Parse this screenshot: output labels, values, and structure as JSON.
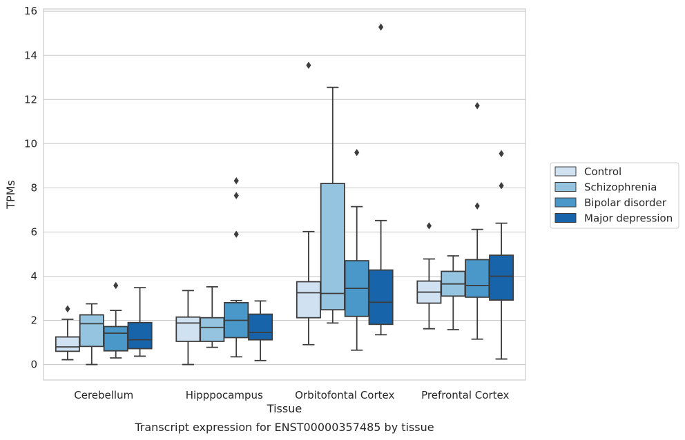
{
  "caption": "Transcript expression for ENST00000357485 by tissue",
  "chart_data": {
    "type": "box",
    "xlabel": "Tissue",
    "ylabel": "TPMs",
    "ylim": [
      -0.7,
      16.1
    ],
    "yticks": [
      0,
      2,
      4,
      6,
      8,
      10,
      12,
      14,
      16
    ],
    "grid": true,
    "legend_position": "right",
    "categories": [
      "Cerebellum",
      "Hipppocampus",
      "Orbitofontal Cortex",
      "Prefrontal Cortex"
    ],
    "series": [
      {
        "name": "Control",
        "color": "#d0e1f2",
        "boxes": [
          {
            "whisker_low": 0.22,
            "q1": 0.6,
            "median": 0.8,
            "q3": 1.25,
            "whisker_high": 2.05,
            "outliers": [
              2.52
            ]
          },
          {
            "whisker_low": 0.0,
            "q1": 1.05,
            "median": 1.88,
            "q3": 2.15,
            "whisker_high": 3.35,
            "outliers": []
          },
          {
            "whisker_low": 0.9,
            "q1": 2.12,
            "median": 3.25,
            "q3": 3.75,
            "whisker_high": 6.02,
            "outliers": [
              13.55
            ]
          },
          {
            "whisker_low": 1.62,
            "q1": 2.78,
            "median": 3.28,
            "q3": 3.78,
            "whisker_high": 4.78,
            "outliers": [
              6.28
            ]
          }
        ]
      },
      {
        "name": "Schizophrenia",
        "color": "#94c4df",
        "boxes": [
          {
            "whisker_low": 0.0,
            "q1": 0.82,
            "median": 1.85,
            "q3": 2.25,
            "whisker_high": 2.75,
            "outliers": []
          },
          {
            "whisker_low": 0.78,
            "q1": 1.05,
            "median": 1.68,
            "q3": 2.12,
            "whisker_high": 3.52,
            "outliers": []
          },
          {
            "whisker_low": 1.88,
            "q1": 2.48,
            "median": 3.22,
            "q3": 8.2,
            "whisker_high": 12.55,
            "outliers": []
          },
          {
            "whisker_low": 1.58,
            "q1": 3.1,
            "median": 3.65,
            "q3": 4.22,
            "whisker_high": 4.92,
            "outliers": []
          }
        ]
      },
      {
        "name": "Bipolar disorder",
        "color": "#4a98c9",
        "boxes": [
          {
            "whisker_low": 0.3,
            "q1": 0.62,
            "median": 1.42,
            "q3": 1.72,
            "whisker_high": 2.45,
            "outliers": [
              3.58
            ]
          },
          {
            "whisker_low": 0.35,
            "q1": 1.22,
            "median": 2.0,
            "q3": 2.8,
            "whisker_high": 2.9,
            "outliers": [
              5.9,
              7.65,
              8.32
            ]
          },
          {
            "whisker_low": 0.65,
            "q1": 2.18,
            "median": 3.45,
            "q3": 4.7,
            "whisker_high": 7.15,
            "outliers": [
              9.6
            ]
          },
          {
            "whisker_low": 1.15,
            "q1": 3.05,
            "median": 3.58,
            "q3": 4.75,
            "whisker_high": 6.12,
            "outliers": [
              7.18,
              11.72
            ]
          }
        ]
      },
      {
        "name": "Major depression",
        "color": "#1764ab",
        "boxes": [
          {
            "whisker_low": 0.38,
            "q1": 0.72,
            "median": 1.12,
            "q3": 1.9,
            "whisker_high": 3.48,
            "outliers": []
          },
          {
            "whisker_low": 0.18,
            "q1": 1.12,
            "median": 1.45,
            "q3": 2.28,
            "whisker_high": 2.88,
            "outliers": []
          },
          {
            "whisker_low": 1.35,
            "q1": 1.82,
            "median": 2.82,
            "q3": 4.28,
            "whisker_high": 6.52,
            "outliers": [
              15.28
            ]
          },
          {
            "whisker_low": 0.25,
            "q1": 2.92,
            "median": 4.0,
            "q3": 4.95,
            "whisker_high": 6.4,
            "outliers": [
              8.1,
              9.55
            ]
          }
        ]
      }
    ]
  }
}
